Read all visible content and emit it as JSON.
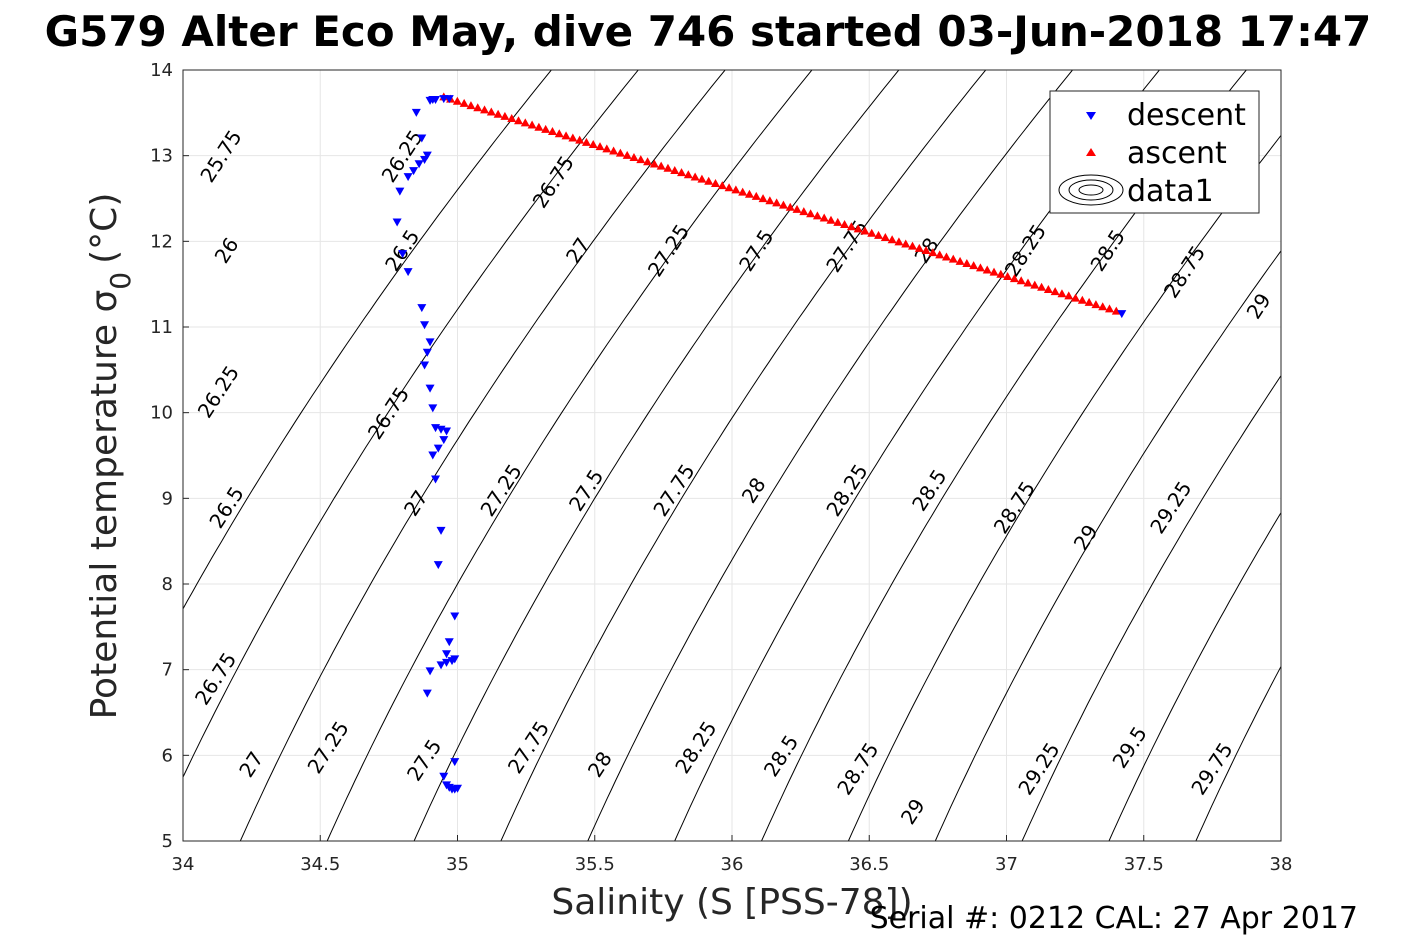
{
  "chart_data": {
    "type": "scatter",
    "title": "G579 Alter Eco May, dive 746 started 03-Jun-2018 17:47",
    "xlabel": "Salinity (S [PSS-78])",
    "ylabel_main": "Potential temperature σ",
    "ylabel_sub": "0",
    "ylabel_unit": "(°C)",
    "footer": "Serial #: 0212  CAL: 27 Apr 2017",
    "xlim": [
      34,
      38
    ],
    "ylim": [
      5,
      14
    ],
    "xticks": [
      "34",
      "34.5",
      "35",
      "35.5",
      "36",
      "36.5",
      "37",
      "37.5",
      "38"
    ],
    "yticks": [
      "5",
      "6",
      "7",
      "8",
      "9",
      "10",
      "11",
      "12",
      "13",
      "14"
    ],
    "grid": true,
    "legend_position": "top-right",
    "legend": [
      {
        "label": "descent",
        "marker": "triangle-down",
        "color": "#0000ff"
      },
      {
        "label": "ascent",
        "marker": "triangle-up",
        "color": "#ff0000"
      },
      {
        "label": "data1",
        "marker": "contour",
        "color": "#000000"
      }
    ],
    "series": [
      {
        "name": "descent",
        "color": "#0000ff",
        "x": [
          34.92,
          34.95,
          34.97,
          34.9,
          34.91,
          34.85,
          34.87,
          34.89,
          34.88,
          34.86,
          34.84,
          34.82,
          34.79,
          34.78,
          34.8,
          34.82,
          34.87,
          34.88,
          34.9,
          34.89,
          34.88,
          34.9,
          34.91,
          34.92,
          34.94,
          34.96,
          34.95,
          34.93,
          34.91,
          34.92,
          34.94,
          34.93,
          34.99,
          34.97,
          34.96,
          34.99,
          34.98,
          34.96,
          34.94,
          34.9,
          34.89,
          34.99,
          34.95,
          34.96,
          34.97,
          34.98,
          34.99,
          35.0,
          37.42
        ],
        "y": [
          13.65,
          13.66,
          13.66,
          13.64,
          13.65,
          13.5,
          13.2,
          13.0,
          12.95,
          12.9,
          12.82,
          12.75,
          12.58,
          12.22,
          11.85,
          11.64,
          11.22,
          11.02,
          10.82,
          10.7,
          10.55,
          10.28,
          10.05,
          9.82,
          9.8,
          9.78,
          9.68,
          9.58,
          9.5,
          9.22,
          8.62,
          8.22,
          7.62,
          7.32,
          7.18,
          7.12,
          7.1,
          7.08,
          7.05,
          6.98,
          6.72,
          5.92,
          5.75,
          5.65,
          5.62,
          5.6,
          5.6,
          5.61,
          11.15
        ]
      },
      {
        "name": "ascent",
        "color": "#ff0000",
        "x_start": 34.95,
        "y_start": 13.68,
        "x_end": 37.4,
        "y_end": 11.18,
        "count": 100
      }
    ],
    "contours": {
      "name": "data1",
      "sigma0_levels": [
        25.75,
        26,
        26.25,
        26.5,
        26.75,
        27,
        27.25,
        27.5,
        27.75,
        28,
        28.25,
        28.5,
        28.75,
        29,
        29.25,
        29.5,
        29.75
      ],
      "labels": [
        {
          "text": "25.75",
          "x": 34.16,
          "y": 12.95
        },
        {
          "text": "26",
          "x": 34.18,
          "y": 11.85
        },
        {
          "text": "26.25",
          "x": 34.15,
          "y": 10.2
        },
        {
          "text": "26.5",
          "x": 34.18,
          "y": 8.85
        },
        {
          "text": "26.75",
          "x": 34.14,
          "y": 6.85
        },
        {
          "text": "27",
          "x": 34.27,
          "y": 5.85
        },
        {
          "text": "26.25",
          "x": 34.82,
          "y": 12.95
        },
        {
          "text": "26.5",
          "x": 34.82,
          "y": 11.85
        },
        {
          "text": "26.75",
          "x": 34.77,
          "y": 9.95
        },
        {
          "text": "27",
          "x": 34.87,
          "y": 8.9
        },
        {
          "text": "27.25",
          "x": 34.55,
          "y": 6.05
        },
        {
          "text": "27.5",
          "x": 34.9,
          "y": 5.9
        },
        {
          "text": "26.75",
          "x": 35.37,
          "y": 12.65
        },
        {
          "text": "27",
          "x": 35.46,
          "y": 11.85
        },
        {
          "text": "27.25",
          "x": 35.18,
          "y": 9.05
        },
        {
          "text": "27.5",
          "x": 35.49,
          "y": 9.05
        },
        {
          "text": "27.75",
          "x": 35.28,
          "y": 6.05
        },
        {
          "text": "27.25",
          "x": 35.79,
          "y": 11.85
        },
        {
          "text": "27.5",
          "x": 36.11,
          "y": 11.85
        },
        {
          "text": "27.75",
          "x": 35.81,
          "y": 9.05
        },
        {
          "text": "28",
          "x": 36.1,
          "y": 9.05
        },
        {
          "text": "28",
          "x": 35.54,
          "y": 5.85
        },
        {
          "text": "28.25",
          "x": 35.89,
          "y": 6.05
        },
        {
          "text": "27.75",
          "x": 36.44,
          "y": 11.9
        },
        {
          "text": "28",
          "x": 36.73,
          "y": 11.85
        },
        {
          "text": "28.25",
          "x": 36.44,
          "y": 9.05
        },
        {
          "text": "28.5",
          "x": 36.74,
          "y": 9.05
        },
        {
          "text": "28.5",
          "x": 36.2,
          "y": 5.95
        },
        {
          "text": "28.75",
          "x": 36.48,
          "y": 5.8
        },
        {
          "text": "29",
          "x": 36.68,
          "y": 5.3
        },
        {
          "text": "28.25",
          "x": 37.09,
          "y": 11.85
        },
        {
          "text": "28.5",
          "x": 37.39,
          "y": 11.85
        },
        {
          "text": "28.75",
          "x": 37.67,
          "y": 11.6
        },
        {
          "text": "29",
          "x": 37.94,
          "y": 11.2
        },
        {
          "text": "28.75",
          "x": 37.05,
          "y": 8.85
        },
        {
          "text": "29",
          "x": 37.31,
          "y": 8.5
        },
        {
          "text": "29.25",
          "x": 37.62,
          "y": 8.85
        },
        {
          "text": "29.25",
          "x": 37.14,
          "y": 5.8
        },
        {
          "text": "29.5",
          "x": 37.47,
          "y": 6.05
        },
        {
          "text": "29.75",
          "x": 37.77,
          "y": 5.8
        }
      ]
    }
  }
}
